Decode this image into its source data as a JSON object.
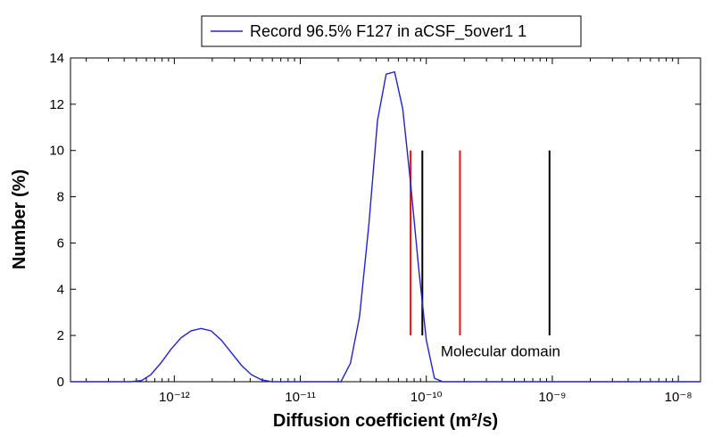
{
  "chart_data": {
    "type": "line",
    "title": "",
    "xlabel": "Diffusion coefficient (m²/s)",
    "ylabel": "Number (%)",
    "x_scale": "log",
    "xlim": [
      1.5e-13,
      1.5e-08
    ],
    "ylim": [
      0,
      14
    ],
    "x_ticks": [
      {
        "value": 1e-12,
        "label": "10⁻¹²"
      },
      {
        "value": 1e-11,
        "label": "10⁻¹¹"
      },
      {
        "value": 1e-10,
        "label": "10⁻¹⁰"
      },
      {
        "value": 1e-09,
        "label": "10⁻⁹"
      },
      {
        "value": 1e-08,
        "label": "10⁻⁸"
      }
    ],
    "y_ticks": [
      0,
      2,
      4,
      6,
      8,
      10,
      12,
      14
    ],
    "grid": false,
    "legend": {
      "position": "top-center",
      "outside": true
    },
    "series": [
      {
        "name": "Record 96.5% F127 in aCSF_5over1 1",
        "color": "#2222cc",
        "x": [
          1.5e-13,
          4.5e-13,
          5.5e-13,
          6.5e-13,
          7.8e-13,
          9.4e-13,
          1.13e-12,
          1.36e-12,
          1.63e-12,
          1.96e-12,
          2.36e-12,
          2.84e-12,
          3.42e-12,
          4.1e-12,
          4.93e-12,
          5.93e-12,
          1e-11,
          2.1e-11,
          2.5e-11,
          2.95e-11,
          3.5e-11,
          4.1e-11,
          4.8e-11,
          5.6e-11,
          6.5e-11,
          7.5e-11,
          8.7e-11,
          1e-10,
          1.16e-10,
          1.35e-10,
          1.5e-08
        ],
        "y": [
          0,
          0,
          0.05,
          0.3,
          0.8,
          1.4,
          1.9,
          2.2,
          2.3,
          2.2,
          1.8,
          1.25,
          0.7,
          0.3,
          0.08,
          0,
          0,
          0,
          0.8,
          2.8,
          6.8,
          11.3,
          13.3,
          13.4,
          11.8,
          8.6,
          4.9,
          1.8,
          0.15,
          0,
          0
        ]
      }
    ],
    "reference_lines": [
      {
        "x": 7.5e-11,
        "y_from": 2,
        "y_to": 10,
        "color": "#ee1111"
      },
      {
        "x": 9.3e-11,
        "y_from": 2,
        "y_to": 10,
        "color": "#000000"
      },
      {
        "x": 1.85e-10,
        "y_from": 2,
        "y_to": 10,
        "color": "#ee1111"
      },
      {
        "x": 9.5e-10,
        "y_from": 2,
        "y_to": 10,
        "color": "#000000"
      }
    ],
    "annotations": [
      {
        "text": "Molecular domain",
        "x": 1.3e-10,
        "y": 1.1
      }
    ]
  }
}
